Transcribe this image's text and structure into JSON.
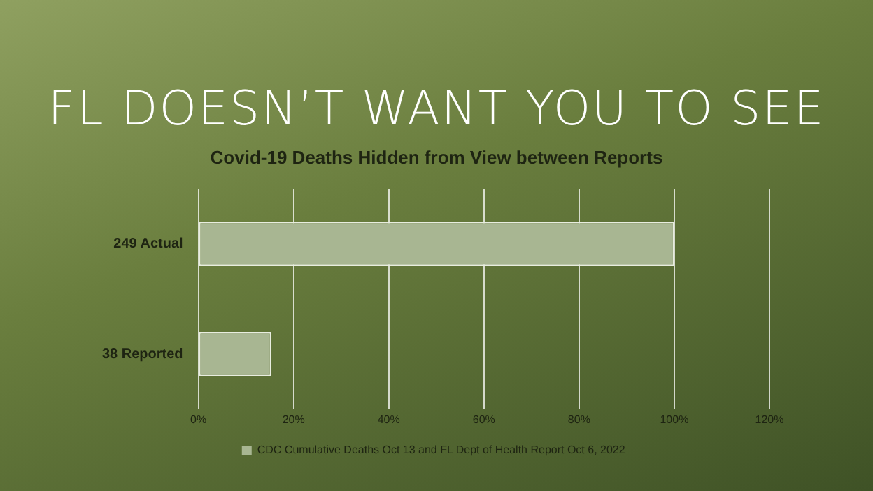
{
  "chart_data": {
    "type": "bar",
    "orientation": "horizontal",
    "title": "FL DOESN’T WANT YOU TO SEE",
    "subtitle": "Covid-19 Deaths Hidden from View between Reports",
    "categories": [
      "249 Actual",
      "38 Reported"
    ],
    "series": [
      {
        "name": "CDC Cumulative Deaths Oct 13 and FL Dept of Health Report Oct 6, 2022",
        "color": "#a8b692",
        "values": [
          100,
          15.3
        ]
      }
    ],
    "xlim": [
      0,
      120
    ],
    "xticks": [
      {
        "value": 0,
        "label": "0%"
      },
      {
        "value": 20,
        "label": "20%"
      },
      {
        "value": 40,
        "label": "40%"
      },
      {
        "value": 60,
        "label": "60%"
      },
      {
        "value": 80,
        "label": "80%"
      },
      {
        "value": 100,
        "label": "100%"
      },
      {
        "value": 120,
        "label": "120%"
      }
    ],
    "grid": "x",
    "legend": "bottom"
  }
}
